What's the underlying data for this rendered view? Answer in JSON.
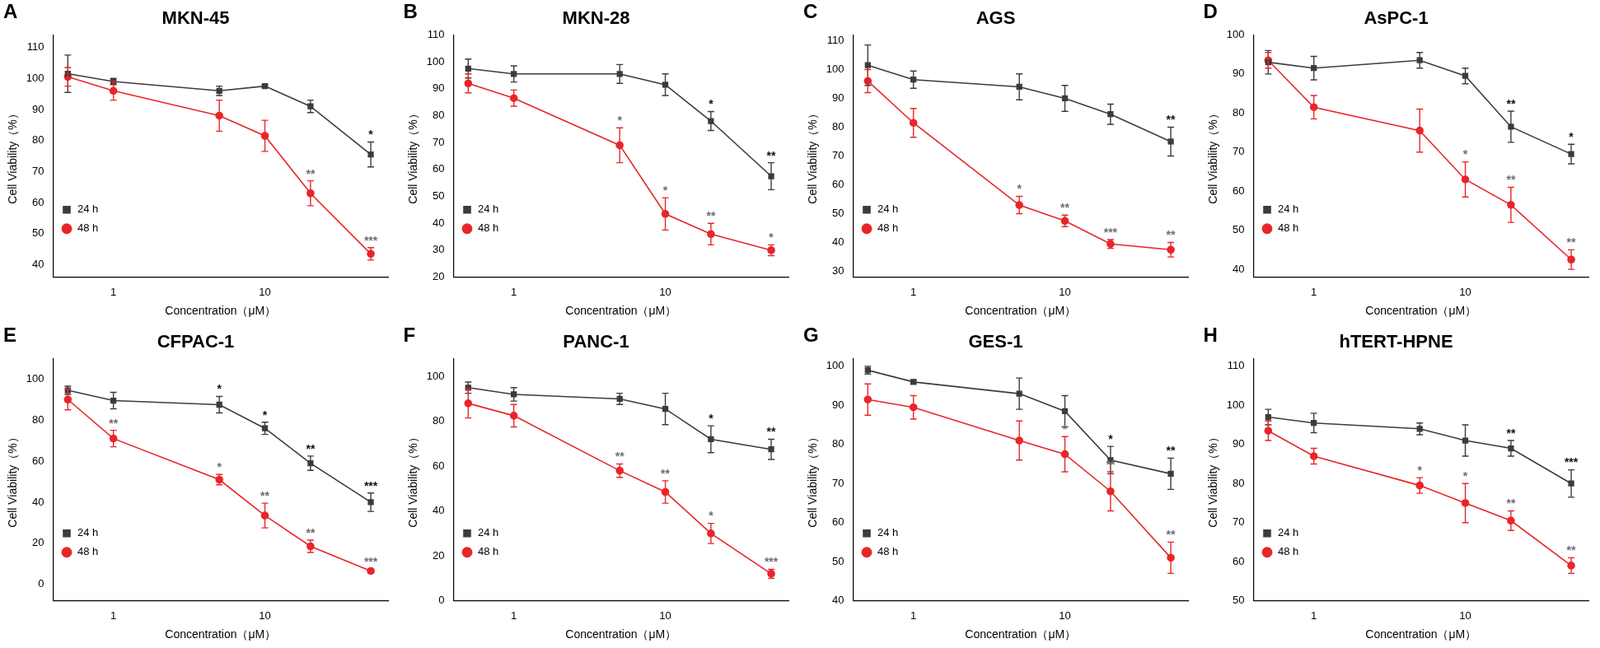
{
  "chart_data": [
    {
      "type": "line",
      "panel": "A",
      "title": "MKN-45",
      "x_label": "Concentration（μM）",
      "y_label": "Cell Viability（%）",
      "x": [
        0.5,
        1,
        5,
        10,
        20,
        50
      ],
      "log": "x",
      "xlim": [
        0.4,
        65
      ],
      "xticks": [
        1,
        10
      ],
      "ylim": [
        36,
        114
      ],
      "yticks": [
        40,
        50,
        60,
        70,
        80,
        90,
        100,
        110
      ],
      "grid": false,
      "legend": "upper right",
      "series": [
        {
          "name": "24 h",
          "color": "#3c3c3c",
          "marker": "square",
          "values": [
            101.5,
            99,
            96,
            97.5,
            91,
            75.5
          ],
          "errors": [
            6,
            1,
            1.5,
            0.5,
            2,
            4
          ],
          "significance": [
            null,
            null,
            null,
            null,
            null,
            "*"
          ]
        },
        {
          "name": "48 h",
          "color": "#e8262a",
          "marker": "circle",
          "values": [
            100.5,
            96,
            88,
            81.5,
            63,
            43.5
          ],
          "errors": [
            3,
            3,
            5,
            5,
            4,
            2
          ],
          "significance": [
            null,
            null,
            null,
            null,
            "**",
            "***"
          ]
        }
      ]
    },
    {
      "type": "line",
      "panel": "B",
      "title": "MKN-28",
      "x_label": "Concentration（μM）",
      "y_label": "Cell Viability（%）",
      "x": [
        0.5,
        1,
        5,
        10,
        20,
        50
      ],
      "log": "x",
      "xlim": [
        0.4,
        65
      ],
      "xticks": [
        1,
        10
      ],
      "ylim": [
        20,
        110
      ],
      "yticks": [
        20,
        30,
        40,
        50,
        60,
        70,
        80,
        90,
        100,
        110
      ],
      "grid": false,
      "legend": "upper right",
      "series": [
        {
          "name": "24 h",
          "color": "#3c3c3c",
          "marker": "square",
          "values": [
            97.5,
            95.5,
            95.5,
            91.5,
            78,
            57.5
          ],
          "errors": [
            3.5,
            3,
            3.5,
            4,
            3.5,
            5
          ],
          "significance": [
            null,
            null,
            null,
            null,
            "*",
            "**"
          ]
        },
        {
          "name": "48 h",
          "color": "#e8262a",
          "marker": "circle",
          "values": [
            92,
            86.5,
            69,
            43.5,
            36,
            30
          ],
          "errors": [
            3.5,
            3,
            6.5,
            6,
            4,
            2
          ],
          "significance": [
            null,
            null,
            "*",
            "*",
            "**",
            "*"
          ]
        }
      ]
    },
    {
      "type": "line",
      "panel": "C",
      "title": "AGS",
      "x_label": "Concentration（μM）",
      "y_label": "Cell Viability（%）",
      "x": [
        0.5,
        1,
        5,
        10,
        20,
        50
      ],
      "log": "x",
      "xlim": [
        0.4,
        65
      ],
      "xticks": [
        1,
        10
      ],
      "ylim": [
        28,
        112
      ],
      "yticks": [
        30,
        40,
        50,
        60,
        70,
        80,
        90,
        100,
        110
      ],
      "grid": false,
      "legend": "upper right",
      "series": [
        {
          "name": "24 h",
          "color": "#3c3c3c",
          "marker": "square",
          "values": [
            101.5,
            96.5,
            94,
            90,
            84.5,
            75
          ],
          "errors": [
            7,
            3,
            4.5,
            4.5,
            3.5,
            5
          ],
          "significance": [
            null,
            null,
            null,
            null,
            null,
            "**"
          ]
        },
        {
          "name": "48 h",
          "color": "#e8262a",
          "marker": "circle",
          "values": [
            96,
            81.5,
            53,
            47.5,
            39.5,
            37.5
          ],
          "errors": [
            4,
            5,
            3,
            2,
            1.5,
            2.5
          ],
          "significance": [
            null,
            null,
            "*",
            "**",
            "***",
            "**"
          ]
        }
      ]
    },
    {
      "type": "line",
      "panel": "D",
      "title": "AsPC-1",
      "x_label": "Concentration（μM）",
      "y_label": "Cell Viability（%）",
      "x": [
        0.5,
        1,
        5,
        10,
        20,
        50
      ],
      "log": "x",
      "xlim": [
        0.4,
        65
      ],
      "xticks": [
        1,
        10
      ],
      "ylim": [
        38,
        100
      ],
      "yticks": [
        40,
        50,
        60,
        70,
        80,
        90,
        100
      ],
      "grid": false,
      "legend": "upper right",
      "series": [
        {
          "name": "24 h",
          "color": "#3c3c3c",
          "marker": "square",
          "values": [
            93,
            91.5,
            93.5,
            89.5,
            76.5,
            69.5
          ],
          "errors": [
            3,
            3,
            2,
            2,
            4,
            2.5
          ],
          "significance": [
            null,
            null,
            null,
            null,
            "**",
            "*"
          ]
        },
        {
          "name": "48 h",
          "color": "#e8262a",
          "marker": "circle",
          "values": [
            93.5,
            81.5,
            75.5,
            63,
            56.5,
            42.5
          ],
          "errors": [
            2,
            3,
            5.5,
            4.5,
            4.5,
            2.5
          ],
          "significance": [
            null,
            null,
            null,
            "*",
            "**",
            "**"
          ]
        }
      ]
    },
    {
      "type": "line",
      "panel": "E",
      "title": "CFPAC-1",
      "x_label": "Concentration（μM）",
      "y_label": "Cell Viability（%）",
      "x": [
        0.5,
        1,
        5,
        10,
        20,
        50
      ],
      "log": "x",
      "xlim": [
        0.4,
        65
      ],
      "xticks": [
        1,
        10
      ],
      "ylim": [
        -8,
        110
      ],
      "yticks": [
        0,
        20,
        40,
        60,
        80,
        100
      ],
      "grid": false,
      "legend": "upper right",
      "series": [
        {
          "name": "24 h",
          "color": "#3c3c3c",
          "marker": "square",
          "values": [
            94.5,
            89.5,
            87.5,
            76,
            59,
            40
          ],
          "errors": [
            2,
            4,
            4,
            3,
            3.5,
            4.5
          ],
          "significance": [
            null,
            null,
            "*",
            "*",
            "**",
            "***"
          ]
        },
        {
          "name": "48 h",
          "color": "#e8262a",
          "marker": "circle",
          "values": [
            90,
            71,
            51,
            33.5,
            18.5,
            6.5
          ],
          "errors": [
            5,
            4,
            2.5,
            6,
            3,
            1
          ],
          "significance": [
            null,
            "**",
            "*",
            "**",
            "**",
            "***"
          ]
        }
      ]
    },
    {
      "type": "line",
      "panel": "F",
      "title": "PANC-1",
      "x_label": "Concentration（μM）",
      "y_label": "Cell Viability（%）",
      "x": [
        0.5,
        1,
        5,
        10,
        20,
        50
      ],
      "log": "x",
      "xlim": [
        0.4,
        65
      ],
      "xticks": [
        1,
        10
      ],
      "ylim": [
        0,
        108
      ],
      "yticks": [
        0,
        20,
        40,
        60,
        80,
        100
      ],
      "grid": false,
      "legend": "upper right",
      "series": [
        {
          "name": "24 h",
          "color": "#3c3c3c",
          "marker": "square",
          "values": [
            95,
            92,
            90,
            85.5,
            72,
            67.5
          ],
          "errors": [
            2.5,
            3,
            2.5,
            7,
            6,
            4.5
          ],
          "significance": [
            null,
            null,
            null,
            null,
            "*",
            "**"
          ]
        },
        {
          "name": "48 h",
          "color": "#e8262a",
          "marker": "circle",
          "values": [
            88,
            82.5,
            58,
            48.5,
            30,
            12
          ],
          "errors": [
            6.5,
            5,
            3,
            5,
            4.5,
            2
          ],
          "significance": [
            null,
            null,
            "**",
            "**",
            "*",
            "***"
          ]
        }
      ]
    },
    {
      "type": "line",
      "panel": "G",
      "title": "GES-1",
      "x_label": "Concentration（μM）",
      "y_label": "Cell Viability（%）",
      "x": [
        0.5,
        1,
        5,
        10,
        20,
        50
      ],
      "log": "x",
      "xlim": [
        0.4,
        65
      ],
      "xticks": [
        1,
        10
      ],
      "ylim": [
        40,
        102
      ],
      "yticks": [
        40,
        50,
        60,
        70,
        80,
        90,
        100
      ],
      "grid": false,
      "legend": "upper right",
      "series": [
        {
          "name": "24 h",
          "color": "#3c3c3c",
          "marker": "square",
          "values": [
            99,
            96,
            93,
            88.5,
            76,
            72.5
          ],
          "errors": [
            1,
            0.5,
            4,
            4,
            3.5,
            4
          ],
          "significance": [
            null,
            null,
            null,
            null,
            "*",
            "**"
          ]
        },
        {
          "name": "48 h",
          "color": "#e8262a",
          "marker": "circle",
          "values": [
            91.5,
            89.5,
            81,
            77.5,
            68,
            51
          ],
          "errors": [
            4,
            3,
            5,
            4.5,
            5,
            4
          ],
          "significance": [
            null,
            null,
            null,
            "*",
            "**",
            "**"
          ]
        }
      ]
    },
    {
      "type": "line",
      "panel": "H",
      "title": "hTERT-HPNE",
      "x_label": "Concentration（μM）",
      "y_label": "Cell Viability（%）",
      "x": [
        0.5,
        1,
        5,
        10,
        20,
        50
      ],
      "log": "x",
      "xlim": [
        0.4,
        65
      ],
      "xticks": [
        1,
        10
      ],
      "ylim": [
        50,
        112
      ],
      "yticks": [
        50,
        60,
        70,
        80,
        90,
        100,
        110
      ],
      "grid": false,
      "legend": "upper right",
      "series": [
        {
          "name": "24 h",
          "color": "#3c3c3c",
          "marker": "square",
          "values": [
            97,
            95.5,
            94,
            91,
            89,
            80
          ],
          "errors": [
            2,
            2.5,
            1.5,
            4,
            2,
            3.5
          ],
          "significance": [
            null,
            null,
            null,
            null,
            "**",
            "***"
          ]
        },
        {
          "name": "48 h",
          "color": "#e8262a",
          "marker": "circle",
          "values": [
            93.5,
            87,
            79.5,
            75,
            70.5,
            59
          ],
          "errors": [
            2.5,
            2,
            2,
            5,
            2.5,
            2
          ],
          "significance": [
            null,
            null,
            "*",
            "*",
            "**",
            "**"
          ]
        }
      ]
    }
  ]
}
